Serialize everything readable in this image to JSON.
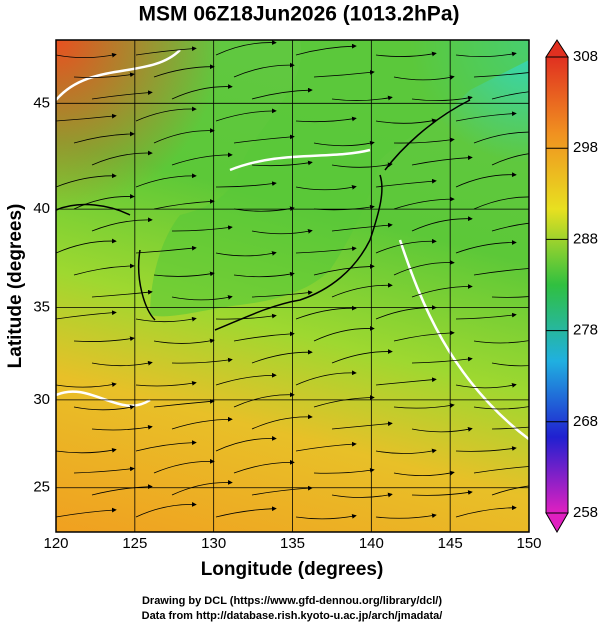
{
  "title": "MSM 06Z18Jun2026 (1013.2hPa)",
  "map": {
    "type": "map",
    "projection": "mercator",
    "xlabel": "Longitude (degrees)",
    "ylabel": "Latitude  (degrees)",
    "xlim": [
      120,
      150
    ],
    "ylim": [
      22.4,
      47.8
    ],
    "xticks": [
      120,
      125,
      130,
      135,
      140,
      145,
      150
    ],
    "yticks": [
      25,
      30,
      35,
      40,
      45
    ],
    "grid": true
  },
  "colorbar": {
    "lim": [
      258,
      308
    ],
    "ticks": [
      258,
      268,
      278,
      288,
      298,
      308
    ],
    "colors": [
      "#e020c0",
      "#2020d0",
      "#20b0e0",
      "#30c040",
      "#e8e020",
      "#f09020",
      "#e03020"
    ]
  },
  "footer": [
    "Drawing by DCL (https://www.gfd-dennou.org/library/dcl/)",
    "Data from http://database.rish.kyoto-u.ac.jp/arch/jmadata/"
  ]
}
